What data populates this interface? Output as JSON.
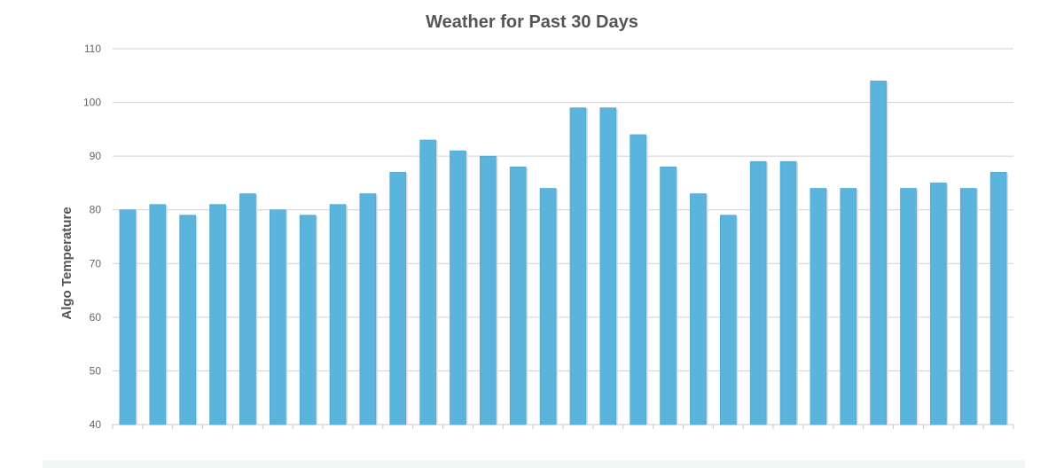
{
  "chart_data": {
    "type": "bar",
    "title": "Weather for Past 30 Days",
    "xlabel": "",
    "ylabel": "Algo Temperature",
    "ylim": [
      40,
      110
    ],
    "yticks": [
      40,
      50,
      60,
      70,
      80,
      90,
      100,
      110
    ],
    "grid": true,
    "legend": "none",
    "colors": {
      "bar": "#5ab4dc",
      "bar_edge": "#4aa3cc",
      "grid": "#d0d0d0",
      "axis": "#c8c8c8",
      "text": "#666666"
    },
    "values": [
      80,
      81,
      79,
      81,
      83,
      80,
      79,
      81,
      83,
      87,
      93,
      91,
      90,
      88,
      84,
      99,
      99,
      94,
      88,
      83,
      79,
      89,
      89,
      84,
      84,
      104,
      84,
      85,
      84,
      87
    ]
  }
}
